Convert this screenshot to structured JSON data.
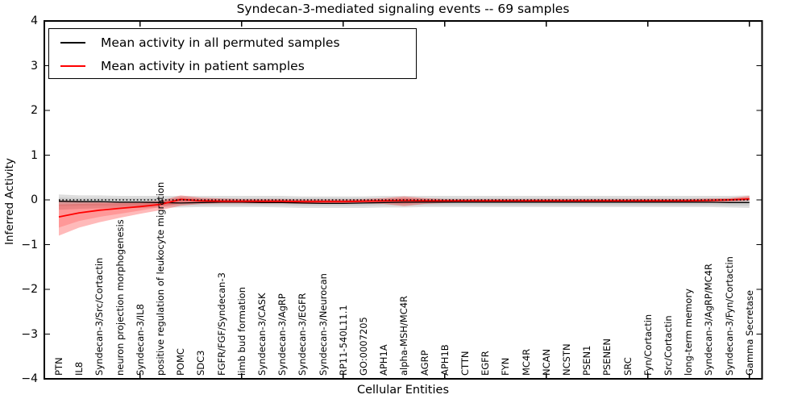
{
  "title": "Syndecan-3-mediated signaling events -- 69 samples",
  "legend": {
    "items": [
      {
        "label": "Mean activity in all permuted samples",
        "color": "#000000"
      },
      {
        "label": "Mean activity in patient samples",
        "color": "#ff0000"
      }
    ]
  },
  "axes": {
    "ylabel": "Inferred Activity",
    "xlabel": "Cellular Entities",
    "yticks": [
      4,
      3,
      2,
      1,
      0,
      -1,
      -2,
      -3,
      -4
    ],
    "ylim": [
      -4,
      4
    ]
  },
  "chart_data": {
    "type": "line",
    "title": "Syndecan-3-mediated signaling events -- 69 samples",
    "xlabel": "Cellular Entities",
    "ylabel": "Inferred Activity",
    "ylim": [
      -4,
      4
    ],
    "grid": false,
    "legend_position": "upper left",
    "xtick_indices": [
      4,
      9,
      14,
      19,
      24,
      29,
      34
    ],
    "categories": [
      "PTN",
      "IL8",
      "Syndecan-3/Src/Cortactin",
      "neuron projection morphogenesis",
      "Syndecan-3/IL8",
      "positive regulation of leukocyte migration",
      "POMC",
      "SDC3",
      "FGFR/FGF/Syndecan-3",
      "limb bud formation",
      "Syndecan-3/CASK",
      "Syndecan-3/AgRP",
      "Syndecan-3/EGFR",
      "Syndecan-3/Neurocan",
      "RP11-540L11.1",
      "GO:0007205",
      "APH1A",
      "alpha-MSH/MC4R",
      "AGRP",
      "APH1B",
      "CTTN",
      "EGFR",
      "FYN",
      "MC4R",
      "NCAN",
      "NCSTN",
      "PSEN1",
      "PSENEN",
      "SRC",
      "Fyn/Cortactin",
      "Src/Cortactin",
      "long-term memory",
      "Syndecan-3/AgRP/MC4R",
      "Syndecan-3/Fyn/Cortactin",
      "Gamma Secretase"
    ],
    "series": [
      {
        "name": "Mean activity in all permuted samples",
        "color": "#000000",
        "style": "solid",
        "width": 1.3,
        "values": [
          -0.03,
          -0.04,
          -0.04,
          -0.05,
          -0.05,
          -0.06,
          -0.07,
          -0.06,
          -0.05,
          -0.05,
          -0.06,
          -0.06,
          -0.07,
          -0.08,
          -0.08,
          -0.07,
          -0.06,
          -0.05,
          -0.05,
          -0.05,
          -0.05,
          -0.05,
          -0.05,
          -0.05,
          -0.05,
          -0.05,
          -0.05,
          -0.05,
          -0.05,
          -0.05,
          -0.05,
          -0.05,
          -0.05,
          -0.06,
          -0.06
        ]
      },
      {
        "name": "Mean activity in patient samples",
        "color": "#ff0000",
        "style": "solid",
        "width": 1.8,
        "values": [
          -0.38,
          -0.29,
          -0.23,
          -0.19,
          -0.15,
          -0.1,
          0.01,
          -0.02,
          -0.03,
          -0.03,
          -0.03,
          -0.03,
          -0.04,
          -0.04,
          -0.04,
          -0.03,
          -0.02,
          -0.01,
          -0.02,
          -0.02,
          -0.02,
          -0.02,
          -0.02,
          -0.02,
          -0.02,
          -0.02,
          -0.02,
          -0.02,
          -0.02,
          -0.02,
          -0.02,
          -0.02,
          -0.01,
          0.0,
          0.02
        ]
      }
    ],
    "zero_line": {
      "value": 0,
      "style": "dotted",
      "color": "#000000"
    },
    "bands": [
      {
        "name": "permuted-range-outer",
        "color": "rgba(0,0,0,0.13)",
        "upper": [
          0.12,
          0.1,
          0.1,
          0.09,
          0.09,
          0.09,
          0.09,
          0.09,
          0.09,
          0.09,
          0.09,
          0.09,
          0.08,
          0.08,
          0.08,
          0.08,
          0.09,
          0.09,
          0.09,
          0.09,
          0.09,
          0.09,
          0.09,
          0.09,
          0.09,
          0.09,
          0.09,
          0.09,
          0.09,
          0.09,
          0.09,
          0.09,
          0.09,
          0.09,
          0.1
        ],
        "lower": [
          -0.22,
          -0.2,
          -0.19,
          -0.18,
          -0.18,
          -0.17,
          -0.17,
          -0.16,
          -0.16,
          -0.16,
          -0.16,
          -0.17,
          -0.18,
          -0.18,
          -0.18,
          -0.18,
          -0.17,
          -0.17,
          -0.16,
          -0.16,
          -0.16,
          -0.16,
          -0.16,
          -0.16,
          -0.16,
          -0.16,
          -0.16,
          -0.16,
          -0.16,
          -0.16,
          -0.16,
          -0.16,
          -0.16,
          -0.17,
          -0.18
        ]
      },
      {
        "name": "permuted-range-inner",
        "color": "rgba(0,0,0,0.08)",
        "upper": [
          0.05,
          0.04,
          0.04,
          0.04,
          0.04,
          0.04,
          0.04,
          0.04,
          0.04,
          0.04,
          0.04,
          0.04,
          0.04,
          0.04,
          0.04,
          0.04,
          0.04,
          0.04,
          0.04,
          0.04,
          0.04,
          0.04,
          0.04,
          0.04,
          0.04,
          0.04,
          0.04,
          0.04,
          0.04,
          0.04,
          0.04,
          0.04,
          0.04,
          0.04,
          0.05
        ],
        "lower": [
          -0.14,
          -0.13,
          -0.13,
          -0.13,
          -0.13,
          -0.12,
          -0.12,
          -0.12,
          -0.12,
          -0.12,
          -0.12,
          -0.12,
          -0.13,
          -0.13,
          -0.13,
          -0.13,
          -0.12,
          -0.12,
          -0.12,
          -0.12,
          -0.12,
          -0.12,
          -0.12,
          -0.12,
          -0.12,
          -0.12,
          -0.12,
          -0.12,
          -0.12,
          -0.12,
          -0.12,
          -0.12,
          -0.12,
          -0.13,
          -0.13
        ]
      },
      {
        "name": "patient-range-outer",
        "color": "rgba(255,0,0,0.27)",
        "upper": [
          -0.01,
          -0.02,
          -0.03,
          -0.04,
          -0.04,
          -0.02,
          0.1,
          0.05,
          0.03,
          0.02,
          0.02,
          0.02,
          0.01,
          0.01,
          0.01,
          0.02,
          0.04,
          0.08,
          0.04,
          0.02,
          0.02,
          0.02,
          0.02,
          0.02,
          0.02,
          0.02,
          0.02,
          0.02,
          0.02,
          0.02,
          0.02,
          0.02,
          0.03,
          0.04,
          0.09
        ],
        "lower": [
          -0.8,
          -0.62,
          -0.5,
          -0.4,
          -0.31,
          -0.23,
          -0.13,
          -0.09,
          -0.08,
          -0.08,
          -0.08,
          -0.08,
          -0.09,
          -0.09,
          -0.09,
          -0.08,
          -0.09,
          -0.14,
          -0.09,
          -0.07,
          -0.06,
          -0.06,
          -0.06,
          -0.06,
          -0.06,
          -0.06,
          -0.06,
          -0.06,
          -0.06,
          -0.06,
          -0.06,
          -0.05,
          -0.05,
          -0.04,
          -0.02
        ]
      },
      {
        "name": "patient-range-inner",
        "color": "rgba(255,0,0,0.18)",
        "upper": [
          -0.1,
          -0.09,
          -0.08,
          -0.08,
          -0.07,
          -0.05,
          0.06,
          0.02,
          0.01,
          0.0,
          0.0,
          0.0,
          0.0,
          0.0,
          0.0,
          0.0,
          0.01,
          0.04,
          0.02,
          0.0,
          0.0,
          0.0,
          0.0,
          0.0,
          0.0,
          0.0,
          0.0,
          0.0,
          0.0,
          0.0,
          0.0,
          0.01,
          0.01,
          0.02,
          0.06
        ],
        "lower": [
          -0.62,
          -0.47,
          -0.38,
          -0.31,
          -0.24,
          -0.16,
          -0.08,
          -0.05,
          -0.05,
          -0.05,
          -0.05,
          -0.05,
          -0.06,
          -0.06,
          -0.06,
          -0.05,
          -0.06,
          -0.09,
          -0.06,
          -0.04,
          -0.04,
          -0.04,
          -0.04,
          -0.04,
          -0.04,
          -0.04,
          -0.04,
          -0.04,
          -0.04,
          -0.04,
          -0.04,
          -0.03,
          -0.03,
          -0.02,
          0.0
        ]
      }
    ]
  },
  "colors": {
    "frame": "#000000",
    "background": "#ffffff"
  }
}
